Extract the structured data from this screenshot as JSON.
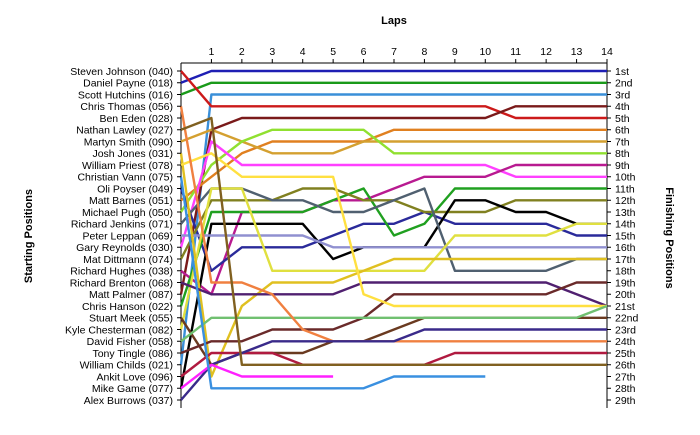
{
  "chart_data": {
    "type": "line",
    "title": "",
    "top_axis_label": "Laps",
    "left_axis_label": "Starting Positions",
    "right_axis_label": "Finishing Positions",
    "laps": [
      1,
      2,
      3,
      4,
      5,
      6,
      7,
      8,
      9,
      10,
      11,
      12,
      13,
      14
    ],
    "start_labels": [
      "Steven Johnson (040)",
      "Daniel Payne (018)",
      "Scott Hutchins (016)",
      "Chris Thomas (056)",
      "Ben Eden (028)",
      "Nathan Lawley (027)",
      "Martyn Smith (090)",
      "Josh Jones (031)",
      "William Priest (078)",
      "Christian Vann (075)",
      "Oli Poyser (049)",
      "Matt Barnes (051)",
      "Michael Pugh (050)",
      "Richard Jenkins (071)",
      "Peter Leppan (069)",
      "Gary Reynolds (030)",
      "Mat Dittmann (074)",
      "Richard Hughes (038)",
      "Richard Brenton (068)",
      "Matt Palmer (087)",
      "Chris Hanson (022)",
      "Stuart Meek (055)",
      "Kyle Chesterman (082)",
      "David Fisher (058)",
      "Tony Tingle (086)",
      "William Childs (021)",
      "Ankit Love (096)",
      "Mike Game (077)",
      "Alex Burrows (037)"
    ],
    "finish_labels": [
      "1st",
      "2nd",
      "3rd",
      "4th",
      "5th",
      "6th",
      "7th",
      "8th",
      "9th",
      "10th",
      "11th",
      "12th",
      "13th",
      "14th",
      "15th",
      "16th",
      "17th",
      "18th",
      "19th",
      "20th",
      "21st",
      "22nd",
      "23rd",
      "24th",
      "25th",
      "26th",
      "27th",
      "28th",
      "29th"
    ],
    "series": [
      {
        "color": "#1f1fb4",
        "positions": [
          2,
          1,
          1,
          1,
          1,
          1,
          1,
          1,
          1,
          1,
          1,
          1,
          1,
          1,
          1
        ]
      },
      {
        "color": "#1a9a1a",
        "positions": [
          3,
          2,
          2,
          2,
          2,
          2,
          2,
          2,
          2,
          2,
          2,
          2,
          2,
          2,
          2
        ]
      },
      {
        "color": "#3a8fd8",
        "positions": [
          26,
          3,
          3,
          3,
          3,
          3,
          3,
          3,
          3,
          3,
          3,
          3,
          3,
          3,
          3
        ]
      },
      {
        "color": "#cc1a1a",
        "positions": [
          1,
          4,
          4,
          4,
          4,
          4,
          4,
          4,
          4,
          4,
          4,
          5,
          5,
          5,
          5
        ]
      },
      {
        "color": "#7a1a1a",
        "positions": [
          20,
          6,
          5,
          5,
          5,
          5,
          5,
          5,
          5,
          5,
          5,
          4,
          4,
          4,
          4
        ]
      },
      {
        "color": "#e08020",
        "positions": [
          12,
          10,
          8,
          7,
          7,
          7,
          7,
          6,
          6,
          6,
          6,
          6,
          6,
          6,
          6
        ]
      },
      {
        "color": "#d4a030",
        "positions": [
          7,
          6,
          7,
          8,
          8,
          8,
          7,
          7,
          7,
          7,
          7,
          7,
          7,
          7,
          7
        ]
      },
      {
        "color": "#90e030",
        "positions": [
          13,
          9,
          7,
          6,
          6,
          6,
          6,
          8,
          8,
          8,
          8,
          8,
          8,
          8,
          8
        ]
      },
      {
        "color": "#ff40ff",
        "positions": [
          16,
          7,
          9,
          9,
          9,
          9,
          9,
          9,
          9,
          9,
          9,
          10,
          10,
          10,
          10
        ]
      },
      {
        "color": "#b81a90",
        "positions": [
          18,
          20,
          13,
          13,
          13,
          12,
          12,
          11,
          10,
          10,
          10,
          9,
          9,
          9,
          9
        ]
      },
      {
        "color": "#2a2a9a",
        "positions": [
          11,
          18,
          16,
          16,
          16,
          15,
          14,
          14,
          13,
          14,
          14,
          14,
          14,
          15,
          15
        ]
      },
      {
        "color": "#20a020",
        "positions": [
          21,
          13,
          13,
          13,
          13,
          12,
          11,
          15,
          14,
          11,
          11,
          11,
          11,
          11,
          11
        ]
      },
      {
        "color": "#808020",
        "positions": [
          17,
          12,
          12,
          12,
          11,
          11,
          12,
          12,
          13,
          13,
          13,
          12,
          12,
          12,
          12
        ]
      },
      {
        "color": "#000000",
        "positions": [
          28,
          14,
          14,
          14,
          14,
          17,
          16,
          16,
          16,
          12,
          12,
          13,
          13,
          14,
          14
        ]
      },
      {
        "color": "#506070",
        "positions": [
          14,
          11,
          11,
          12,
          12,
          13,
          13,
          12,
          11,
          18,
          18,
          18,
          18,
          17,
          17
        ]
      },
      {
        "color": "#9090d0",
        "positions": [
          15,
          15,
          15,
          15,
          15,
          16,
          16,
          16,
          16,
          16,
          16,
          16,
          16,
          16,
          16
        ]
      },
      {
        "color": "#e0e040",
        "positions": [
          23,
          11,
          11,
          18,
          18,
          18,
          18,
          18,
          18,
          15,
          15,
          15,
          15,
          14,
          14
        ]
      },
      {
        "color": "#e0c020",
        "positions": [
          8,
          27,
          21,
          19,
          19,
          19,
          18,
          17,
          17,
          17,
          17,
          17,
          17,
          17,
          17
        ]
      },
      {
        "color": "#6a3a20",
        "positions": [
          22,
          26,
          25,
          25,
          25,
          24,
          24,
          23,
          22,
          22,
          22,
          22,
          22,
          22,
          22
        ]
      },
      {
        "color": "#502070",
        "positions": [
          19,
          20,
          20,
          20,
          20,
          20,
          19,
          19,
          19,
          19,
          19,
          19,
          19,
          20,
          21
        ]
      },
      {
        "color": "#6a2a2a",
        "positions": [
          25,
          24,
          24,
          23,
          23,
          23,
          22,
          20,
          20,
          20,
          20,
          20,
          20,
          19,
          19
        ]
      },
      {
        "color": "#ffe040",
        "positions": [
          9,
          8,
          10,
          10,
          10,
          10,
          20,
          21,
          21,
          21,
          21,
          21,
          21,
          21,
          21
        ]
      },
      {
        "color": "#70c070",
        "positions": [
          24,
          22,
          22,
          22,
          22,
          22,
          22,
          22,
          22,
          22,
          22,
          22,
          22,
          22,
          21
        ]
      },
      {
        "color": "#f08040",
        "positions": [
          4,
          19,
          19,
          20,
          23,
          24,
          24,
          24,
          24,
          24,
          24,
          24,
          24,
          24,
          24
        ]
      },
      {
        "color": "#b01a40",
        "positions": [
          27,
          25,
          25,
          25,
          26,
          26,
          26,
          26,
          26,
          25,
          25,
          25,
          25,
          25,
          25
        ]
      },
      {
        "color": "#3a2a8a",
        "positions": [
          29,
          26,
          25,
          24,
          24,
          24,
          24,
          24,
          23,
          23,
          23,
          23,
          23,
          23,
          23
        ]
      },
      {
        "color": "#ff20ff",
        "positions": [
          28,
          26,
          27,
          27,
          27,
          27,
          null,
          null,
          null,
          null,
          null,
          null,
          null,
          null,
          null
        ]
      },
      {
        "color": "#806020",
        "positions": [
          6,
          5,
          26,
          26,
          26,
          26,
          26,
          26,
          26,
          26,
          26,
          26,
          26,
          26,
          26
        ]
      },
      {
        "color": "#3a90e0",
        "positions": [
          10,
          28,
          28,
          28,
          28,
          28,
          28,
          27,
          27,
          27,
          27,
          null,
          null,
          null,
          null
        ]
      }
    ]
  }
}
